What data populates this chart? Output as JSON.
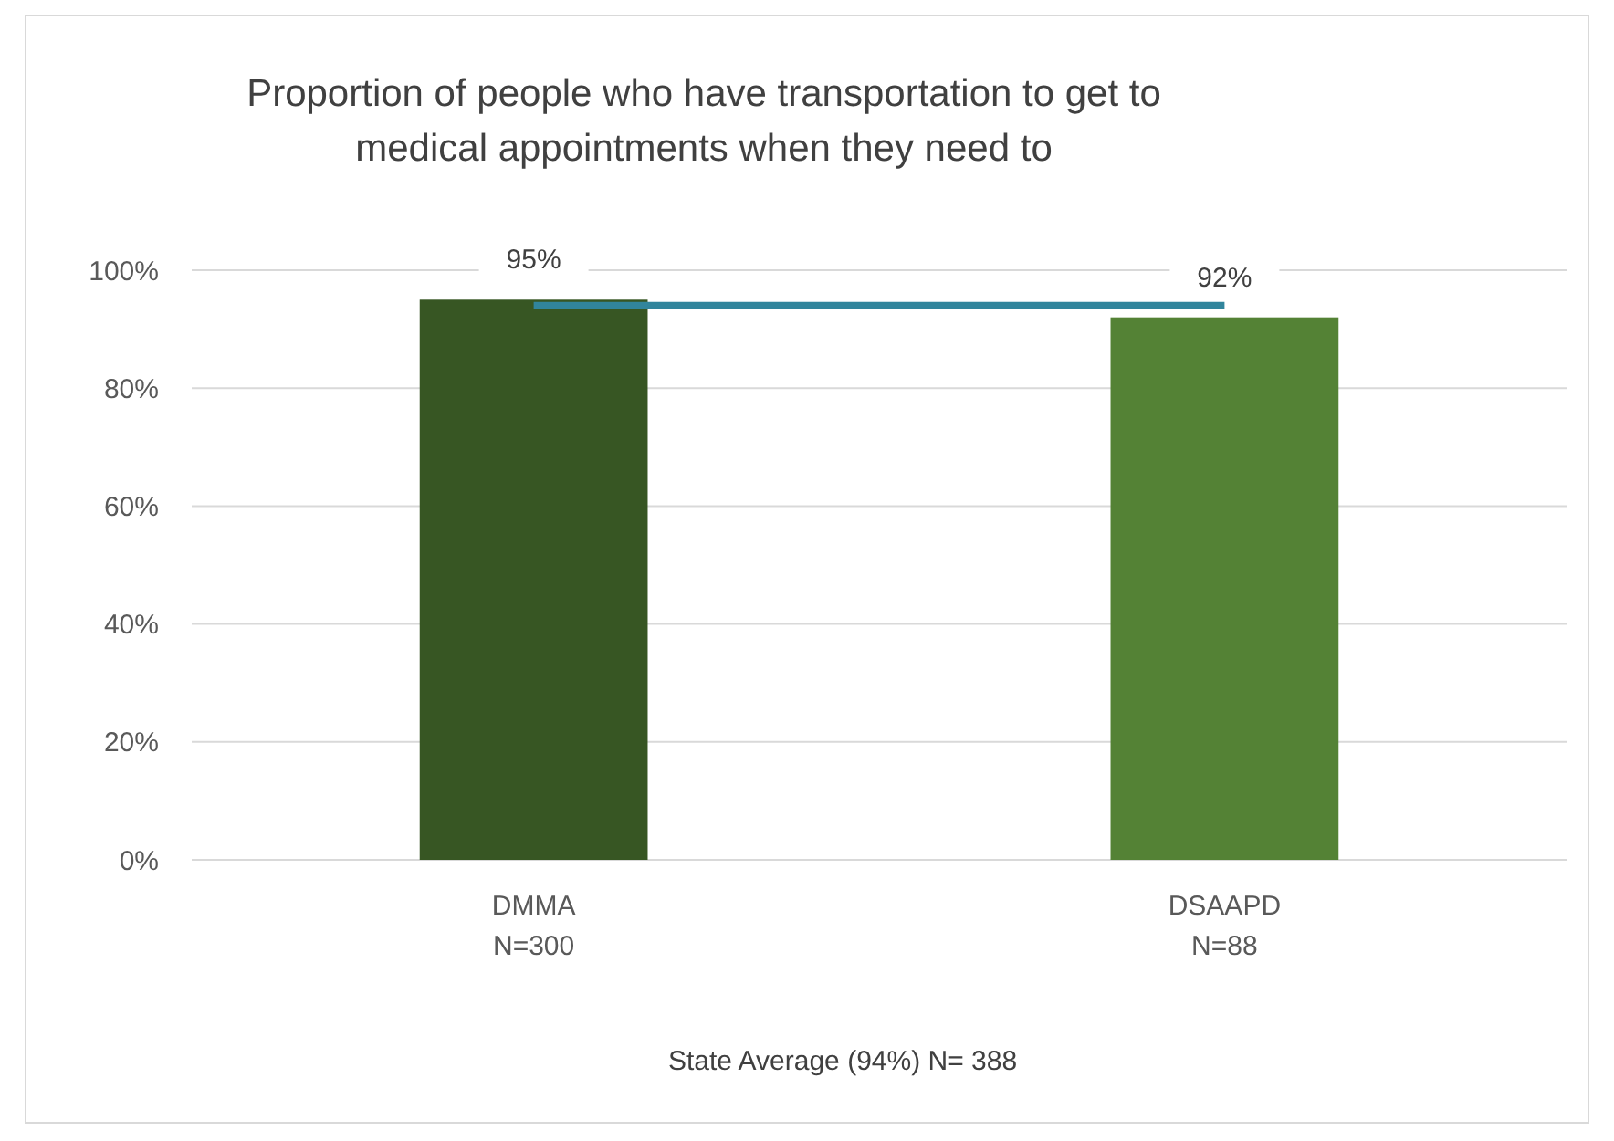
{
  "chart_data": {
    "type": "bar",
    "title": "Proportion of people who have transportation to get to medical appointments when they need to",
    "categories": [
      "DMMA\nN=300",
      "DSAAPD\nN=88"
    ],
    "values": [
      95,
      92
    ],
    "colors": [
      "#375623",
      "#548235"
    ],
    "value_labels": [
      "95%",
      "92%"
    ],
    "ylim": [
      0,
      100
    ],
    "yticks": [
      {
        "value": 0,
        "label": "0%"
      },
      {
        "value": 20,
        "label": "20%"
      },
      {
        "value": 40,
        "label": "40%"
      },
      {
        "value": 60,
        "label": "60%"
      },
      {
        "value": 80,
        "label": "80%"
      },
      {
        "value": 100,
        "label": "100%"
      }
    ],
    "grid": "y",
    "ref_lines": [
      {
        "axis": "y",
        "value": 94,
        "color": "#31859c"
      }
    ],
    "annotations": [
      "State Average (94%) N= 388"
    ]
  }
}
